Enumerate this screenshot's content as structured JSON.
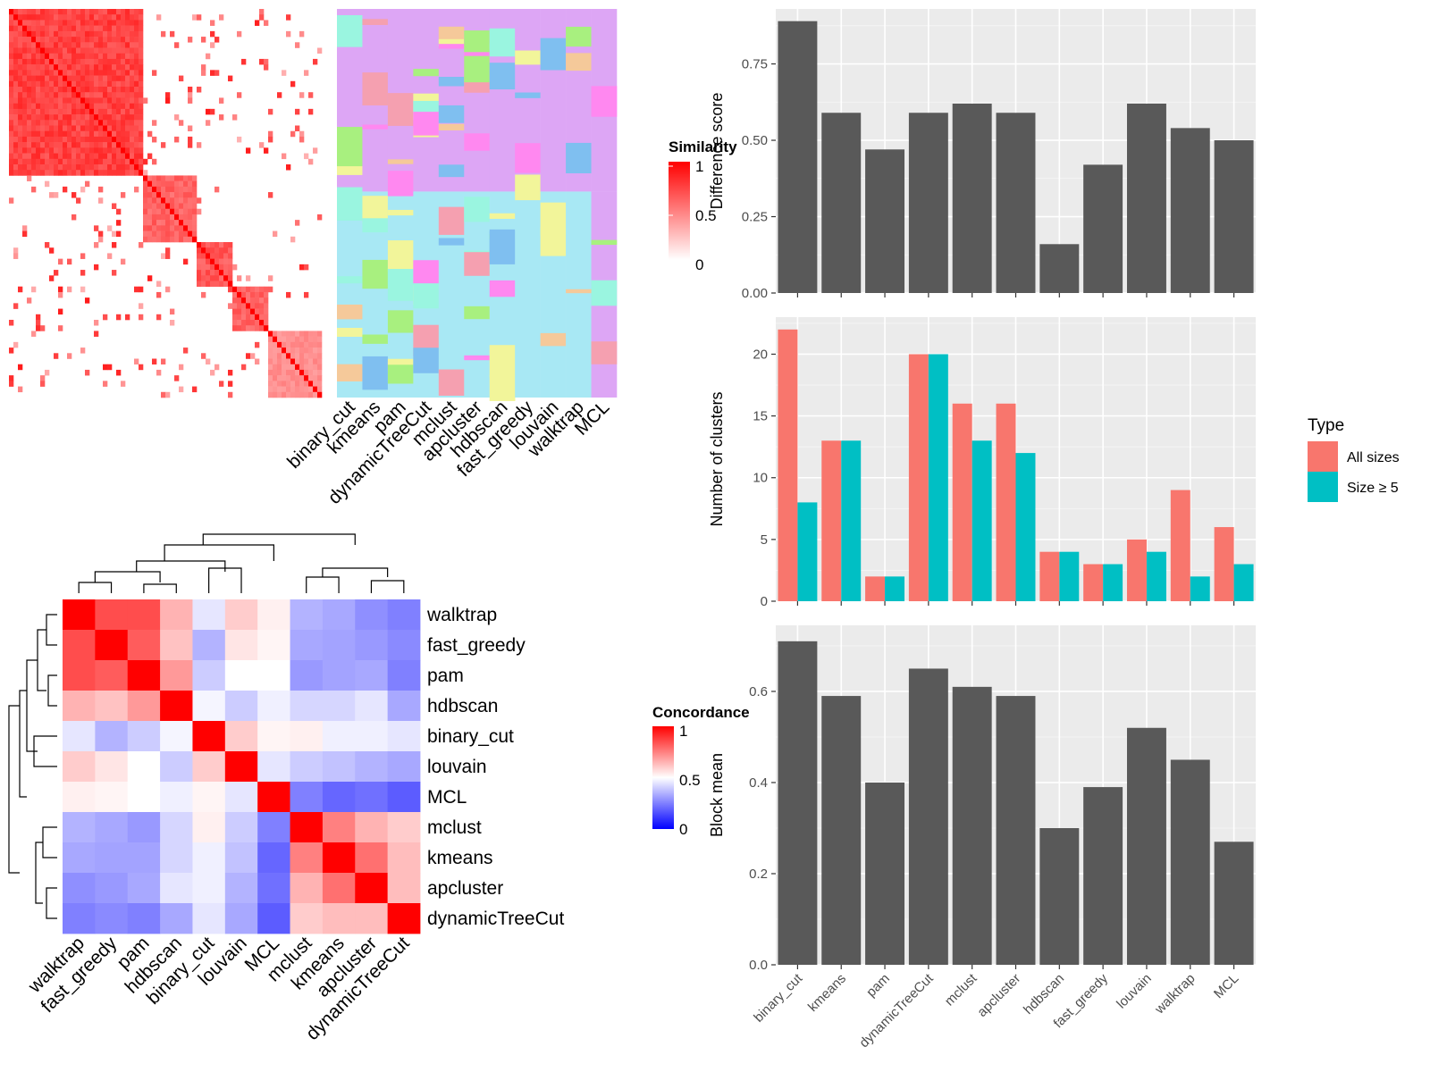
{
  "methods": [
    "binary_cut",
    "kmeans",
    "pam",
    "dynamicTreeCut",
    "mclust",
    "apcluster",
    "hdbscan",
    "fast_greedy",
    "louvain",
    "walktrap",
    "MCL"
  ],
  "similarity_heatmap": {
    "legend_title": "Similarity",
    "legend_ticks": [
      "1",
      "0.5",
      "0"
    ],
    "colors": {
      "low": "#ffffff",
      "high": "#ff0000"
    }
  },
  "class_heatmap": {
    "columns": [
      "binary_cut",
      "kmeans",
      "pam",
      "dynamicTreeCut",
      "mclust",
      "apcluster",
      "hdbscan",
      "fast_greedy",
      "louvain",
      "walktrap",
      "MCL"
    ]
  },
  "concordance_heatmap": {
    "legend_title": "Concordance",
    "legend_ticks": [
      "1",
      "0.5",
      "0"
    ],
    "order": [
      "walktrap",
      "fast_greedy",
      "pam",
      "hdbscan",
      "binary_cut",
      "louvain",
      "MCL",
      "mclust",
      "kmeans",
      "apcluster",
      "dynamicTreeCut"
    ],
    "colors": {
      "low": "#0000ff",
      "mid": "#ffffff",
      "high": "#ff0000"
    }
  },
  "chart_data": [
    {
      "type": "bar",
      "categories": [
        "binary_cut",
        "kmeans",
        "pam",
        "dynamicTreeCut",
        "mclust",
        "apcluster",
        "hdbscan",
        "fast_greedy",
        "louvain",
        "walktrap",
        "MCL"
      ],
      "values": [
        0.89,
        0.59,
        0.47,
        0.59,
        0.62,
        0.59,
        0.16,
        0.42,
        0.62,
        0.54,
        0.5
      ],
      "title": "",
      "xlabel": "",
      "ylabel": "Difference score",
      "ylim": [
        0,
        0.93
      ],
      "yticks": [
        "0.00",
        "0.25",
        "0.50",
        "0.75"
      ],
      "bar_color": "#595959"
    },
    {
      "type": "bar",
      "categories": [
        "binary_cut",
        "kmeans",
        "pam",
        "dynamicTreeCut",
        "mclust",
        "apcluster",
        "hdbscan",
        "fast_greedy",
        "louvain",
        "walktrap",
        "MCL"
      ],
      "series": [
        {
          "name": "All sizes",
          "values": [
            22,
            13,
            2,
            20,
            16,
            16,
            4,
            3,
            5,
            9,
            6
          ],
          "color": "#f8766d"
        },
        {
          "name": "Size ≥ 5",
          "values": [
            8,
            13,
            2,
            20,
            13,
            12,
            4,
            3,
            4,
            2,
            3
          ],
          "color": "#00bfc4"
        }
      ],
      "title": "",
      "xlabel": "",
      "ylabel": "Number of clusters",
      "ylim": [
        0,
        23
      ],
      "yticks": [
        "0",
        "5",
        "10",
        "15",
        "20"
      ],
      "legend_title": "Type",
      "legend_position": "right"
    },
    {
      "type": "bar",
      "categories": [
        "binary_cut",
        "kmeans",
        "pam",
        "dynamicTreeCut",
        "mclust",
        "apcluster",
        "hdbscan",
        "fast_greedy",
        "louvain",
        "walktrap",
        "MCL"
      ],
      "values": [
        0.71,
        0.59,
        0.4,
        0.65,
        0.61,
        0.59,
        0.3,
        0.39,
        0.52,
        0.45,
        0.27
      ],
      "title": "",
      "xlabel": "",
      "ylabel": "Block mean",
      "ylim": [
        0,
        0.745
      ],
      "yticks": [
        "0.0",
        "0.2",
        "0.4",
        "0.6"
      ],
      "bar_color": "#595959"
    }
  ]
}
